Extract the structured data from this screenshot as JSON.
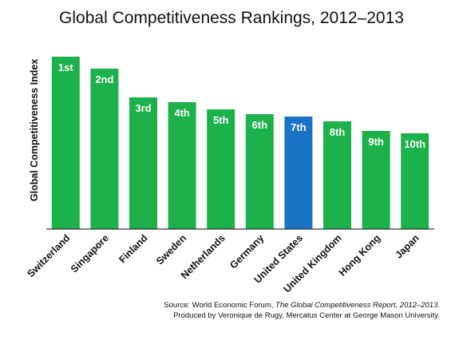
{
  "chart_data": {
    "type": "bar",
    "title": "Global Competitiveness Rankings, 2012–2013",
    "ylabel": "Global Competitiveness Index",
    "xlabel": "",
    "categories": [
      "Switzerland",
      "Singapore",
      "Finland",
      "Sweden",
      "Netherlands",
      "Germany",
      "United States",
      "United Kingdom",
      "Hong Kong",
      "Japan"
    ],
    "data_labels": [
      "1st",
      "2nd",
      "3rd",
      "4th",
      "5th",
      "6th",
      "7th",
      "8th",
      "9th",
      "10th"
    ],
    "values": [
      5.72,
      5.67,
      5.55,
      5.53,
      5.5,
      5.48,
      5.47,
      5.45,
      5.41,
      5.4
    ],
    "ylim": [
      5.0,
      5.75
    ],
    "grid": false,
    "legend": "none",
    "highlight_index": 6,
    "colors": {
      "bar": "#1db14b",
      "highlight": "#1a73c4",
      "axis": "#333333",
      "label": "#ffffff"
    }
  },
  "source": {
    "prefix": "Source: World Economic Forum, ",
    "publication": "The Global Competitiveness Report, 2012–2013",
    "suffix": ".",
    "line2": "Produced by Veronique de Rugy, Mercatus Center at George Mason University."
  }
}
